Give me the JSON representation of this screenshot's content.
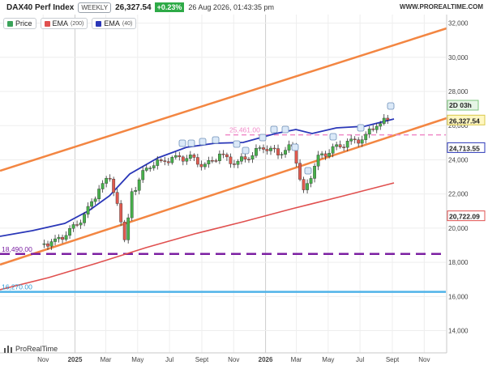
{
  "header": {
    "symbol": "DAX40 Perf Index",
    "period": "WEEKLY",
    "last": "26,327.54",
    "change": "+0.23%",
    "datetime": "26 Aug 2026, 01:43:35 pm",
    "brand": "WWW.PROREALTIME.COM"
  },
  "legend": [
    {
      "label": "Price",
      "param": "",
      "color": "#3aa35a"
    },
    {
      "label": "EMA",
      "param": "(200)",
      "color": "#e0504f"
    },
    {
      "label": "EMA",
      "param": "(40)",
      "color": "#2a37b8"
    }
  ],
  "footer": {
    "logo": "ProRealTime"
  },
  "colors": {
    "up": "#47b04b",
    "down": "#e05a4f",
    "ema200": "#e0504f",
    "ema40": "#2a37b8",
    "channel": "#f38642",
    "pink_level": "#f08ac8",
    "purple_level": "#7b1fa2",
    "blue_level": "#4fb3e8"
  },
  "chart_data": {
    "type": "candlestick",
    "timeframe": "weekly",
    "x_tick_labels": [
      "Nov",
      "2025",
      "Mar",
      "May",
      "Jul",
      "Sept",
      "Nov",
      "2026",
      "Mar",
      "May",
      "Jul",
      "Sept",
      "Nov"
    ],
    "y_tick_labels": [
      "32,000",
      "30,000",
      "28,000",
      "26,000",
      "24,000",
      "22,000",
      "20,000",
      "18,000",
      "16,000",
      "14,000"
    ],
    "ylim": [
      12700,
      32500
    ],
    "close_series": [
      {
        "date": "2024-10-27",
        "close": 19050
      },
      {
        "date": "2024-11-24",
        "close": 19200
      },
      {
        "date": "2024-12-22",
        "close": 19800
      },
      {
        "date": "2025-01-19",
        "close": 20700
      },
      {
        "date": "2025-02-16",
        "close": 22300
      },
      {
        "date": "2025-03-09",
        "close": 23000
      },
      {
        "date": "2025-04-06",
        "close": 19500
      },
      {
        "date": "2025-04-20",
        "close": 22000
      },
      {
        "date": "2025-05-18",
        "close": 23600
      },
      {
        "date": "2025-06-15",
        "close": 23900
      },
      {
        "date": "2025-07-13",
        "close": 24100
      },
      {
        "date": "2025-08-10",
        "close": 24100
      },
      {
        "date": "2025-09-07",
        "close": 23600
      },
      {
        "date": "2025-10-05",
        "close": 24300
      },
      {
        "date": "2025-11-02",
        "close": 23800
      },
      {
        "date": "2025-11-30",
        "close": 24200
      },
      {
        "date": "2025-12-28",
        "close": 24800
      },
      {
        "date": "2026-01-25",
        "close": 24400
      },
      {
        "date": "2026-02-22",
        "close": 24800
      },
      {
        "date": "2026-03-15",
        "close": 22100
      },
      {
        "date": "2026-04-12",
        "close": 24100
      },
      {
        "date": "2026-05-10",
        "close": 24600
      },
      {
        "date": "2026-06-07",
        "close": 25000
      },
      {
        "date": "2026-07-05",
        "close": 25200
      },
      {
        "date": "2026-08-02",
        "close": 26100
      },
      {
        "date": "2026-08-23",
        "close": 26327.54
      }
    ],
    "ema40_label": "24,713.55",
    "ema200_label": "20,722.09",
    "last_price_label": "26,327.54",
    "countdown": "2D 03h",
    "levels": [
      {
        "value": 25461,
        "label": "25,461.00",
        "style": "dashed",
        "color": "#f08ac8"
      },
      {
        "value": 18490,
        "label": "18,490.00",
        "style": "dashed",
        "color": "#7b1fa2"
      },
      {
        "value": 16270,
        "label": "16,270.00",
        "style": "solid",
        "color": "#4fb3e8"
      }
    ],
    "channel_lines": "3 parallel rising lines (orange)",
    "grid": true
  }
}
